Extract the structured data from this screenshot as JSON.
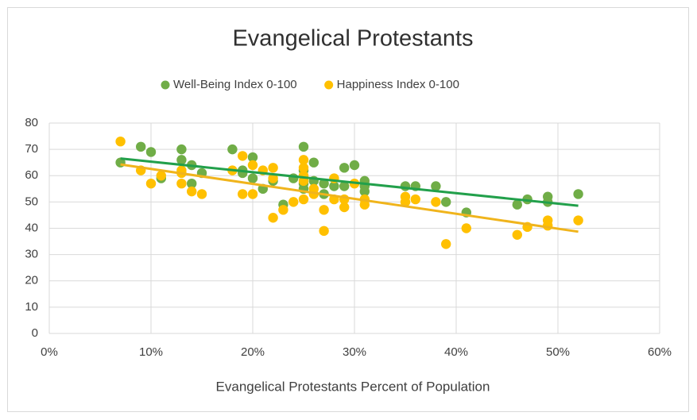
{
  "chart_data": {
    "type": "scatter",
    "title": "Evangelical Protestants",
    "x_label": "Evangelical Protestants Percent of Population",
    "xlim": [
      0,
      60
    ],
    "xticks": [
      {
        "value": 0,
        "label": "0%"
      },
      {
        "value": 10,
        "label": "10%"
      },
      {
        "value": 20,
        "label": "20%"
      },
      {
        "value": 30,
        "label": "30%"
      },
      {
        "value": 40,
        "label": "40%"
      },
      {
        "value": 50,
        "label": "50%"
      },
      {
        "value": 60,
        "label": "60%"
      }
    ],
    "ylim": [
      0,
      80
    ],
    "yticks": [
      0,
      10,
      20,
      30,
      40,
      50,
      60,
      70,
      80
    ],
    "grid": true,
    "legend": "top",
    "trendline": true,
    "series": [
      {
        "name": "Well-Being Index 0-100",
        "color": "#70ad47",
        "trendline_color": "#22a04b",
        "x": [
          7,
          9,
          10,
          11,
          13,
          13,
          14,
          14,
          15,
          18,
          19,
          19,
          20,
          20,
          21,
          22,
          23,
          24,
          25,
          25,
          25,
          25,
          26,
          26,
          27,
          27,
          28,
          29,
          29,
          30,
          31,
          31,
          31,
          35,
          36,
          38,
          39,
          41,
          46,
          47,
          49,
          49,
          52
        ],
        "values": [
          65,
          71,
          69,
          59,
          70,
          66,
          64,
          57,
          61,
          70,
          62,
          61,
          67,
          59,
          55,
          58,
          49,
          59,
          71,
          62,
          57,
          55,
          65,
          58,
          57,
          53,
          56,
          63,
          56,
          64,
          58,
          56,
          54,
          56,
          56,
          56,
          50,
          46,
          49,
          51,
          52,
          50,
          53
        ]
      },
      {
        "name": "Happiness Index 0-100",
        "color": "#ffc000",
        "trendline_color": "#f0b41c",
        "x": [
          7,
          9,
          10,
          11,
          13,
          13,
          13,
          14,
          15,
          18,
          19,
          19,
          20,
          20,
          21,
          22,
          22,
          22,
          23,
          24,
          25,
          25,
          25,
          25,
          25,
          26,
          26,
          27,
          27,
          28,
          28,
          29,
          29,
          30,
          31,
          31,
          35,
          35,
          36,
          38,
          39,
          41,
          46,
          47,
          49,
          49,
          52
        ],
        "values": [
          73,
          62,
          57,
          60,
          62,
          61,
          57,
          54,
          53,
          62,
          67.5,
          53,
          64,
          53,
          62,
          63,
          59,
          44,
          47,
          50,
          66,
          63,
          60,
          58,
          51,
          55,
          53,
          47,
          39,
          59,
          51,
          51,
          48,
          57,
          51,
          49,
          52,
          50,
          51,
          50,
          34,
          40,
          37.5,
          40.5,
          43,
          41,
          43
        ]
      }
    ]
  }
}
